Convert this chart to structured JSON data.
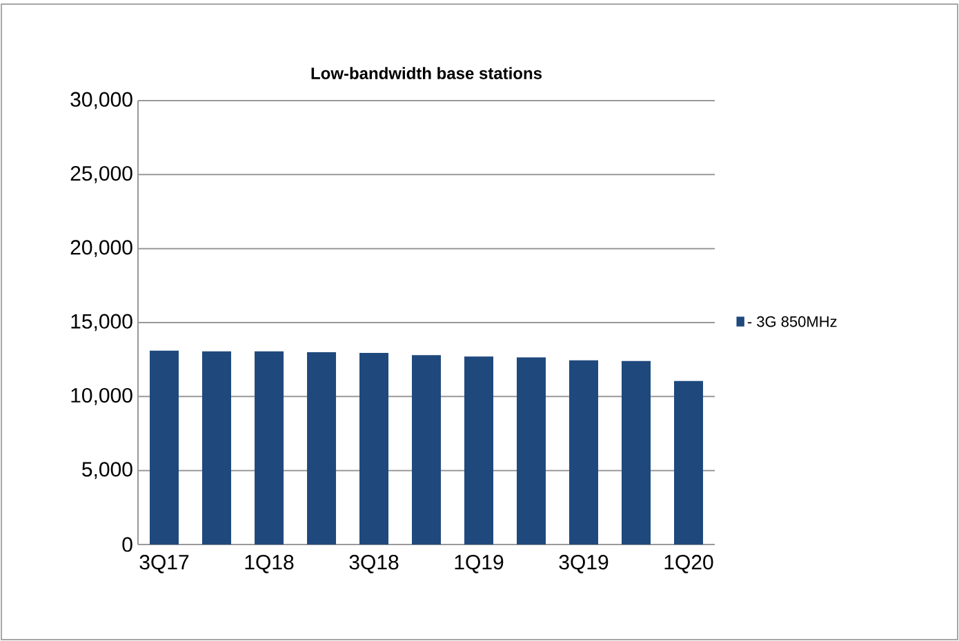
{
  "chart_data": {
    "type": "bar",
    "title": "Low-bandwidth base stations",
    "categories": [
      "3Q17",
      null,
      "1Q18",
      null,
      "3Q18",
      null,
      "1Q19",
      null,
      "3Q19",
      null,
      "1Q20"
    ],
    "series": [
      {
        "name": "- 3G 850MHz",
        "color": "#1f497d",
        "values": [
          13100,
          13050,
          13050,
          13000,
          12950,
          12800,
          12700,
          12650,
          12450,
          12400,
          11050
        ]
      }
    ],
    "ylim": [
      0,
      30000
    ],
    "yticks": [
      {
        "value": 0,
        "label": "0"
      },
      {
        "value": 5000,
        "label": "5,000"
      },
      {
        "value": 10000,
        "label": "10,000"
      },
      {
        "value": 15000,
        "label": "15,000"
      },
      {
        "value": 20000,
        "label": "20,000"
      },
      {
        "value": 25000,
        "label": "25,000"
      },
      {
        "value": 30000,
        "label": "30,000"
      }
    ],
    "grid": "y",
    "legend": "right"
  }
}
